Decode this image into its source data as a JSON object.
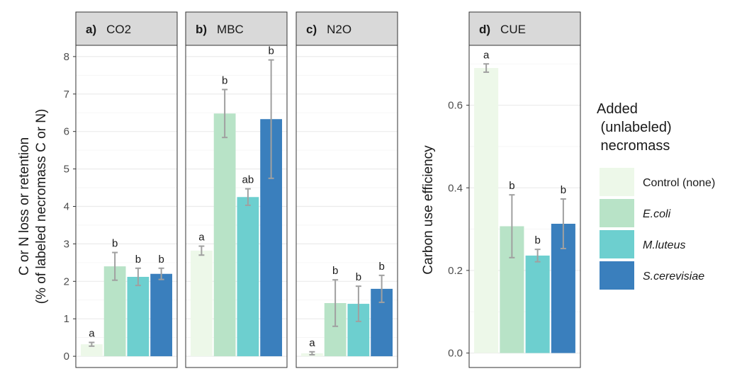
{
  "chart_data": {
    "type": "bar",
    "series_names": [
      "Control (none)",
      "E.coli",
      "M.luteus",
      "S.cerevisiae"
    ],
    "colors": [
      "#edf8e9",
      "#b8e3c7",
      "#6dcfcf",
      "#3a7fbd"
    ],
    "error_bar_color": "#a0a0a0",
    "legend": {
      "title_lines": [
        "Added",
        " (unlabeled)",
        " necromass"
      ],
      "entries": [
        {
          "label": "Control (none)",
          "italic": false
        },
        {
          "label": "E.coli",
          "italic": true
        },
        {
          "label": "M.luteus",
          "italic": true
        },
        {
          "label": "S.cerevisiae",
          "italic": true
        }
      ]
    },
    "ylabel_left": [
      "C or N loss or retention",
      "(% of labeled necromass C or N)"
    ],
    "ylabel_right": "Carbon use efficiency",
    "left_axis": {
      "ylim": [
        -0.3,
        8.3
      ],
      "ticks": [
        "0",
        "1",
        "2",
        "3",
        "4",
        "5",
        "6",
        "7",
        "8"
      ],
      "tick_values": [
        0,
        1,
        2,
        3,
        4,
        5,
        6,
        7,
        8
      ]
    },
    "right_axis": {
      "ylim": [
        -0.035,
        0.745
      ],
      "ticks": [
        "0.0",
        "0.2",
        "0.4",
        "0.6"
      ],
      "tick_values": [
        0,
        0.2,
        0.4,
        0.6
      ]
    },
    "panels": [
      {
        "letter": "a)",
        "name": "CO2",
        "axis": "left",
        "values": [
          0.32,
          2.4,
          2.12,
          2.2
        ],
        "errors": [
          0.05,
          0.37,
          0.23,
          0.15
        ],
        "sig": [
          "a",
          "b",
          "b",
          "b"
        ]
      },
      {
        "letter": "b)",
        "name": "MBC",
        "axis": "left",
        "values": [
          2.82,
          6.48,
          4.25,
          6.33
        ],
        "errors": [
          0.12,
          0.64,
          0.22,
          1.58
        ],
        "sig": [
          "a",
          "b",
          "ab",
          "b"
        ]
      },
      {
        "letter": "c)",
        "name": "N2O",
        "axis": "left",
        "values": [
          0.08,
          1.42,
          1.4,
          1.8
        ],
        "errors": [
          0.04,
          0.62,
          0.47,
          0.36
        ],
        "sig": [
          "a",
          "b",
          "b",
          "b"
        ]
      },
      {
        "letter": "d)",
        "name": "CUE",
        "axis": "right",
        "values": [
          0.69,
          0.307,
          0.236,
          0.313
        ],
        "errors": [
          0.01,
          0.076,
          0.015,
          0.06
        ],
        "sig": [
          "a",
          "b",
          "b",
          "b"
        ]
      }
    ]
  }
}
